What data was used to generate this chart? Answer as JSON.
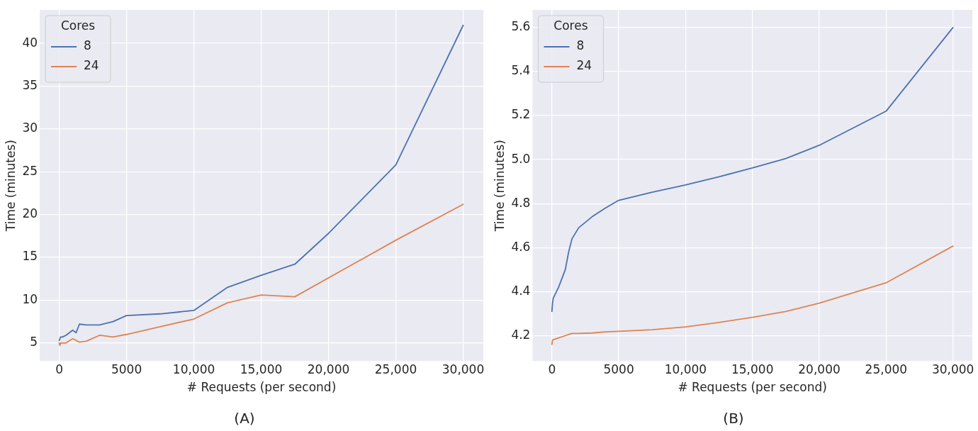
{
  "chart_data": [
    {
      "type": "line",
      "xlabel": "# Requests (per second)",
      "ylabel": "Time (minutes)",
      "legend_title": "Cores",
      "legend": "top left",
      "grid": true,
      "annotations": [
        "(A)"
      ],
      "xlim": [
        -1450,
        31500
      ],
      "ylim": [
        2.9,
        43.9
      ],
      "xticks": [
        {
          "value": 0,
          "label": "0"
        },
        {
          "value": 5000,
          "label": "5000"
        },
        {
          "value": 10000,
          "label": "10,000"
        },
        {
          "value": 15000,
          "label": "15,000"
        },
        {
          "value": 20000,
          "label": "20,000"
        },
        {
          "value": 25000,
          "label": "25,000"
        },
        {
          "value": 30000,
          "label": "30,000"
        }
      ],
      "yticks": [
        5,
        10,
        15,
        20,
        25,
        30,
        35,
        40
      ],
      "series": [
        {
          "name": "8",
          "color": "#4c72b0",
          "x": [
            0,
            100,
            250,
            500,
            1000,
            1250,
            1500,
            2000,
            3000,
            4000,
            5000,
            7500,
            10000,
            12500,
            15000,
            17500,
            20000,
            25000,
            30000
          ],
          "values": [
            5.3,
            5.7,
            5.7,
            5.9,
            6.5,
            6.2,
            7.2,
            7.1,
            7.1,
            7.5,
            8.2,
            8.4,
            8.8,
            11.5,
            12.9,
            14.2,
            17.8,
            25.8,
            42.1
          ]
        },
        {
          "name": "24",
          "color": "#dd8452",
          "x": [
            0,
            50,
            100,
            500,
            1000,
            1500,
            2000,
            3000,
            4000,
            5000,
            7500,
            10000,
            12500,
            15000,
            17500,
            25000,
            30000
          ],
          "values": [
            5.0,
            4.7,
            5.0,
            5.0,
            5.5,
            5.1,
            5.2,
            5.9,
            5.7,
            6.0,
            6.9,
            7.8,
            9.7,
            10.6,
            10.4,
            17.0,
            21.2
          ]
        }
      ]
    },
    {
      "type": "line",
      "xlabel": "# Requests (per second)",
      "ylabel": "Time (minutes)",
      "legend_title": "Cores",
      "legend": "top left",
      "grid": true,
      "annotations": [
        "(B)"
      ],
      "xlim": [
        -1450,
        31450
      ],
      "ylim": [
        4.085,
        5.68
      ],
      "xticks": [
        {
          "value": 0,
          "label": "0"
        },
        {
          "value": 5000,
          "label": "5000"
        },
        {
          "value": 10000,
          "label": "10,000"
        },
        {
          "value": 15000,
          "label": "15,000"
        },
        {
          "value": 20000,
          "label": "20,000"
        },
        {
          "value": 25000,
          "label": "25,000"
        },
        {
          "value": 30000,
          "label": "30,000"
        }
      ],
      "yticks": [
        {
          "value": 4.2,
          "label": "4.2"
        },
        {
          "value": 4.4,
          "label": "4.4"
        },
        {
          "value": 4.6,
          "label": "4.6"
        },
        {
          "value": 4.8,
          "label": "4.8"
        },
        {
          "value": 5.0,
          "label": "5.0"
        },
        {
          "value": 5.2,
          "label": "5.2"
        },
        {
          "value": 5.4,
          "label": "5.4"
        },
        {
          "value": 5.6,
          "label": "5.6"
        }
      ],
      "series": [
        {
          "name": "8",
          "color": "#4c72b0",
          "x": [
            0,
            50,
            100,
            500,
            1000,
            1250,
            1500,
            2000,
            3000,
            4000,
            5000,
            7500,
            10000,
            12500,
            15000,
            17500,
            20000,
            25000,
            30000
          ],
          "values": [
            4.31,
            4.35,
            4.37,
            4.42,
            4.5,
            4.58,
            4.64,
            4.69,
            4.74,
            4.78,
            4.815,
            4.852,
            4.885,
            4.922,
            4.962,
            5.005,
            5.065,
            5.22,
            5.6
          ]
        },
        {
          "name": "24",
          "color": "#dd8452",
          "x": [
            0,
            50,
            500,
            1000,
            1250,
            1500,
            2000,
            3000,
            4000,
            5000,
            7500,
            10000,
            12500,
            15000,
            17500,
            20000,
            25000,
            30000
          ],
          "values": [
            4.16,
            4.18,
            4.19,
            4.2,
            4.205,
            4.21,
            4.21,
            4.212,
            4.217,
            4.22,
            4.227,
            4.24,
            4.26,
            4.283,
            4.31,
            4.348,
            4.44,
            4.607
          ]
        }
      ]
    }
  ]
}
